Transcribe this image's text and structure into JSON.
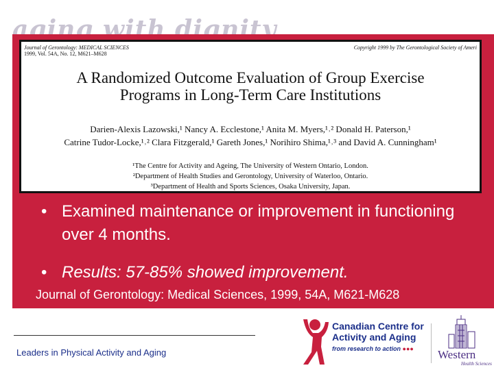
{
  "watermark": "aging with dignity",
  "article": {
    "journal_line1": "Journal of Gerontology: MEDICAL SCIENCES",
    "journal_line2": "1999, Vol. 54A, No. 12, M621–M628",
    "copyright": "Copyright 1999 by The Gerontological Society of Ameri",
    "title_line1": "A Randomized Outcome Evaluation of Group Exercise",
    "title_line2": "Programs in Long-Term Care Institutions",
    "authors_line1": "Darien-Alexis Lazowski,¹ Nancy A. Ecclestone,¹ Anita M. Myers,¹˒² Donald H. Paterson,¹",
    "authors_line2": "Catrine Tudor-Locke,¹˒² Clara Fitzgerald,¹ Gareth Jones,¹ Norihiro Shima,¹˒³ and David A. Cunningham¹",
    "affiliation1": "¹The Centre for Activity and Ageing, The University of Western Ontario, London.",
    "affiliation2": "²Department of Health Studies and Gerontology, University of Waterloo, Ontario.",
    "affiliation3": "³Department of Health and Sports Sciences, Osaka University, Japan."
  },
  "bullets": {
    "item1": "Examined maintenance or improvement in functioning over 4 months.",
    "item2": "Results: 57-85% showed improvement."
  },
  "citation": "Journal of Gerontology: Medical Sciences, 1999, 54A, M621-M628",
  "footer": {
    "tagline": "Leaders in Physical Activity and Aging"
  },
  "logos": {
    "ccaa_line1": "Canadian Centre for",
    "ccaa_line2": "Activity and Aging",
    "ccaa_tagline": "from research to action",
    "western_name": "Western",
    "western_sub": "Health Sciences"
  },
  "colors": {
    "panel": "#c8203e",
    "navy": "#1b2f8a",
    "purple": "#4b2e83"
  }
}
